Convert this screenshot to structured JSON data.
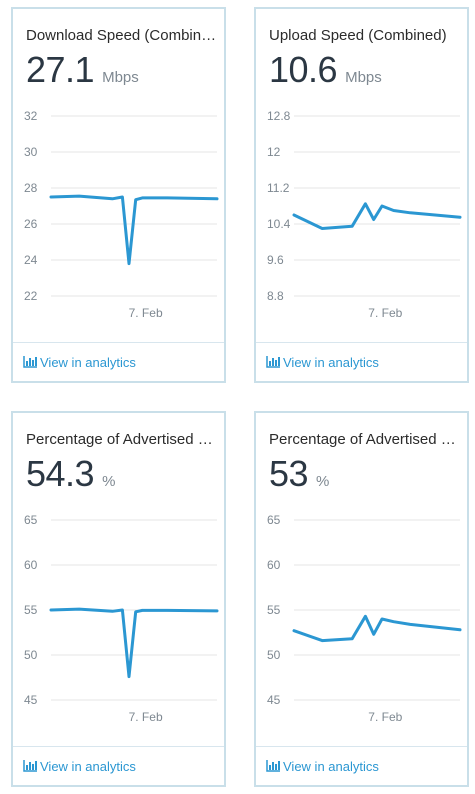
{
  "cards": [
    {
      "title": "Download Speed (Combined)",
      "value": "27.1",
      "unit": "Mbps",
      "link_label": "View in analytics",
      "link_icon": "bar-chart-icon",
      "chart_data": {
        "type": "line",
        "ylim": [
          22,
          32
        ],
        "yticks": [
          "32",
          "30",
          "28",
          "26",
          "24",
          "22"
        ],
        "xlabels": [
          "7. Feb"
        ],
        "x_ticks": [
          0.57
        ],
        "series": [
          {
            "x": [
              0,
              0.17,
              0.37,
              0.43,
              0.47,
              0.51,
              0.55,
              0.6,
              0.7,
              1.0
            ],
            "y": [
              27.5,
              27.55,
              27.4,
              27.5,
              23.8,
              27.35,
              27.45,
              27.45,
              27.45,
              27.4
            ]
          }
        ],
        "color": "#2b97d2"
      }
    },
    {
      "title": "Upload Speed (Combined)",
      "value": "10.6",
      "unit": "Mbps",
      "link_label": "View in analytics",
      "link_icon": "bar-chart-icon",
      "chart_data": {
        "type": "line",
        "ylim": [
          8.8,
          12.8
        ],
        "yticks": [
          "12.8",
          "12",
          "11.2",
          "10.4",
          "9.6",
          "8.8"
        ],
        "xlabels": [
          "7. Feb"
        ],
        "x_ticks": [
          0.55
        ],
        "series": [
          {
            "x": [
              0,
              0.17,
              0.35,
              0.43,
              0.48,
              0.53,
              0.6,
              0.7,
              1.0
            ],
            "y": [
              10.6,
              10.3,
              10.35,
              10.85,
              10.5,
              10.8,
              10.7,
              10.65,
              10.55
            ]
          }
        ],
        "color": "#2b97d2"
      }
    },
    {
      "title": "Percentage of Advertised Download Speed",
      "value": "54.3",
      "unit": "%",
      "link_label": "View in analytics",
      "link_icon": "bar-chart-icon",
      "chart_data": {
        "type": "line",
        "ylim": [
          45,
          65
        ],
        "yticks": [
          "65",
          "60",
          "55",
          "50",
          "45"
        ],
        "xlabels": [
          "7. Feb"
        ],
        "x_ticks": [
          0.57
        ],
        "series": [
          {
            "x": [
              0,
              0.17,
              0.37,
              0.43,
              0.47,
              0.51,
              0.55,
              0.6,
              0.7,
              1.0
            ],
            "y": [
              55.0,
              55.1,
              54.85,
              55.0,
              47.6,
              54.8,
              54.95,
              54.95,
              54.95,
              54.9
            ]
          }
        ],
        "color": "#2b97d2"
      }
    },
    {
      "title": "Percentage of Advertised Upload Speed",
      "value": "53",
      "unit": "%",
      "link_label": "View in analytics",
      "link_icon": "bar-chart-icon",
      "chart_data": {
        "type": "line",
        "ylim": [
          45,
          65
        ],
        "yticks": [
          "65",
          "60",
          "55",
          "50",
          "45"
        ],
        "xlabels": [
          "7. Feb"
        ],
        "x_ticks": [
          0.55
        ],
        "series": [
          {
            "x": [
              0,
              0.17,
              0.35,
              0.43,
              0.48,
              0.53,
              0.6,
              0.7,
              1.0
            ],
            "y": [
              52.7,
              51.6,
              51.8,
              54.3,
              52.3,
              54.0,
              53.7,
              53.4,
              52.8
            ]
          }
        ],
        "color": "#2b97d2"
      }
    }
  ]
}
